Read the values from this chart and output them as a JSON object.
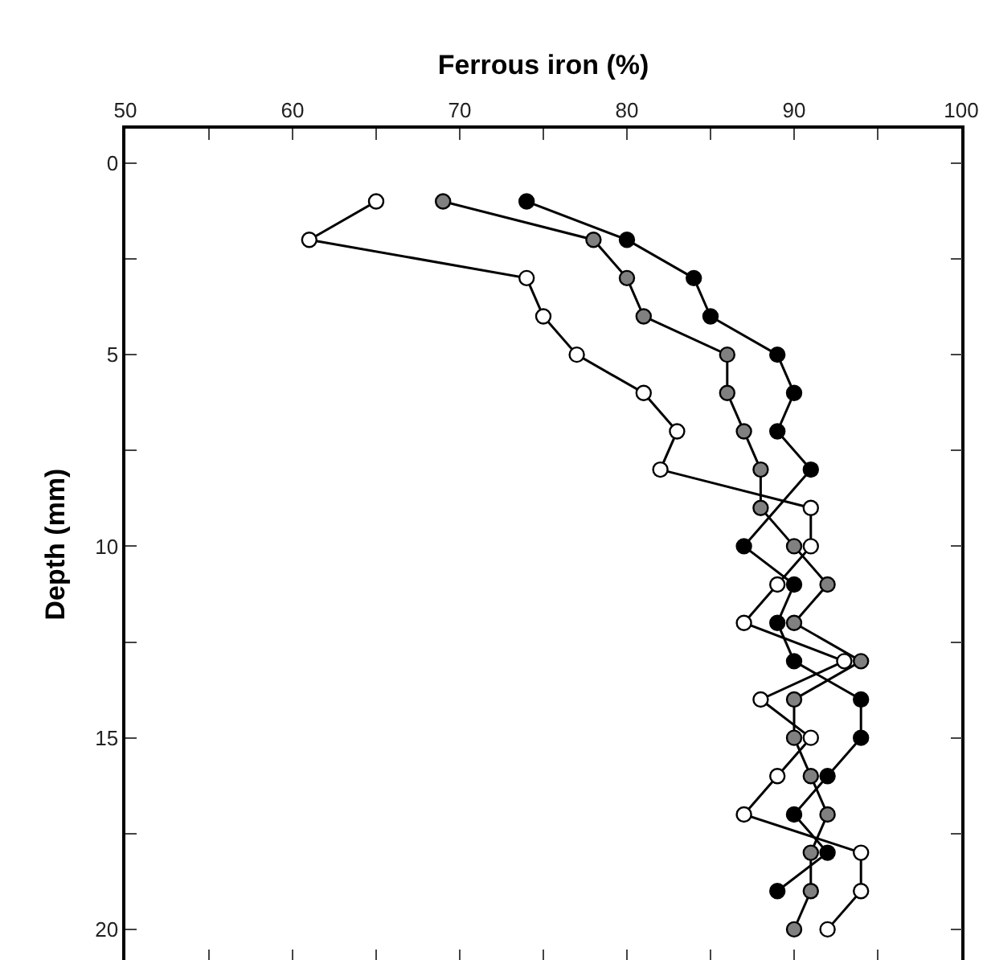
{
  "chart_data": {
    "type": "line",
    "xlabel": "Ferrous iron (%)",
    "ylabel": "Depth (mm)",
    "xlim": [
      50,
      100
    ],
    "xticks": [
      50,
      {
        "value": 55,
        "label": null
      },
      60,
      {
        "value": 65,
        "label": null
      },
      70,
      {
        "value": 75,
        "label": null
      },
      80,
      {
        "value": 85,
        "label": null
      },
      90,
      {
        "value": 95,
        "label": null
      },
      100
    ],
    "ylim": [
      20.8,
      -0.9
    ],
    "yticks": [
      0,
      {
        "value": 2.5,
        "label": null
      },
      5,
      {
        "value": 7.5,
        "label": null
      },
      10,
      {
        "value": 12.5,
        "label": null
      },
      15,
      {
        "value": 17.5,
        "label": null
      },
      20
    ],
    "marker": "circle",
    "series": [
      {
        "color": "#ffffff",
        "x": [
          65,
          61,
          74,
          75,
          77,
          81,
          83,
          82,
          91,
          91,
          89,
          87,
          93,
          88,
          91,
          89,
          87,
          94,
          94,
          92
        ],
        "values": [
          1,
          2,
          3,
          4,
          5,
          6,
          7,
          8,
          9,
          10,
          11,
          12,
          13,
          14,
          15,
          16,
          17,
          18,
          19,
          20
        ]
      },
      {
        "color": "#808080",
        "x": [
          69,
          78,
          80,
          81,
          86,
          86,
          87,
          88,
          88,
          90,
          92,
          90,
          94,
          90,
          90,
          91,
          92,
          91,
          91,
          90
        ],
        "values": [
          1,
          2,
          3,
          4,
          5,
          6,
          7,
          8,
          9,
          10,
          11,
          12,
          13,
          14,
          15,
          16,
          17,
          18,
          19,
          20
        ]
      },
      {
        "color": "#000000",
        "x": [
          74,
          80,
          84,
          85,
          89,
          90,
          89,
          91,
          87,
          90,
          89,
          90,
          94,
          94,
          92,
          90,
          92,
          89
        ],
        "values": [
          1,
          2,
          3,
          4,
          5,
          6,
          7,
          8,
          10,
          11,
          12,
          13,
          14,
          15,
          16,
          17,
          18,
          19
        ]
      }
    ]
  }
}
